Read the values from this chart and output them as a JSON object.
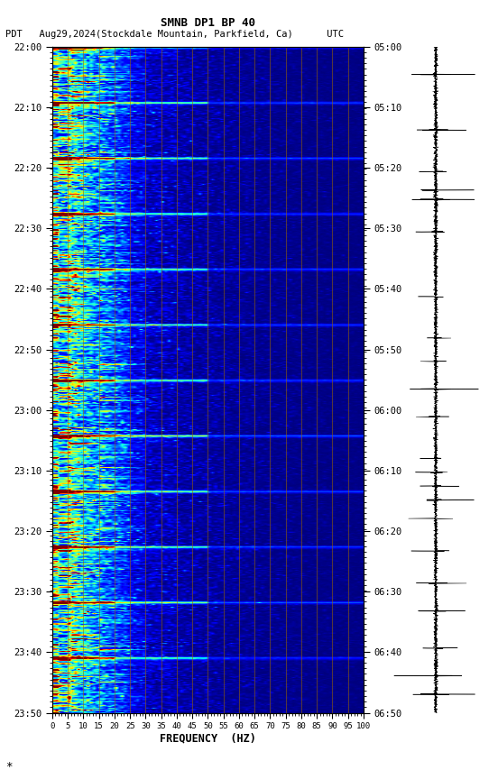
{
  "title_line1": "SMNB DP1 BP 40",
  "title_line2_left": "PDT   Aug29,2024(Stockdale Mountain, Parkfield, Ca)      UTC",
  "xlabel": "FREQUENCY  (HZ)",
  "freq_min": 0,
  "freq_max": 100,
  "freq_ticks": [
    0,
    5,
    10,
    15,
    20,
    25,
    30,
    35,
    40,
    45,
    50,
    55,
    60,
    65,
    70,
    75,
    80,
    85,
    90,
    95,
    100
  ],
  "time_left_labels": [
    "22:00",
    "22:10",
    "22:20",
    "22:30",
    "22:40",
    "22:50",
    "23:00",
    "23:10",
    "23:20",
    "23:30",
    "23:40",
    "23:50"
  ],
  "time_right_labels": [
    "05:00",
    "05:10",
    "05:20",
    "05:30",
    "05:40",
    "05:50",
    "06:00",
    "06:10",
    "06:20",
    "06:30",
    "06:40",
    "06:50"
  ],
  "n_time_steps": 720,
  "n_freq_bins": 100,
  "figure_bg": "#ffffff",
  "colormap": "jet",
  "vertical_lines_freq": [
    5,
    10,
    15,
    20,
    25,
    30,
    35,
    40,
    45,
    50,
    55,
    60,
    65,
    70,
    75,
    80,
    85,
    90,
    95,
    100
  ],
  "vline_color": "#996600",
  "vline_alpha": 0.8,
  "vline_lw": 0.5,
  "event_times": [
    0,
    60,
    120,
    180,
    240,
    300,
    360,
    420,
    480,
    540,
    600,
    660
  ],
  "seismo_spikes": [
    30,
    90,
    135,
    155,
    165,
    200,
    270,
    315,
    340,
    370,
    400,
    445,
    460,
    475,
    490,
    510,
    545,
    580,
    610,
    650,
    680,
    700
  ],
  "spec_vmin": 0.0,
  "spec_vmax": 0.9
}
